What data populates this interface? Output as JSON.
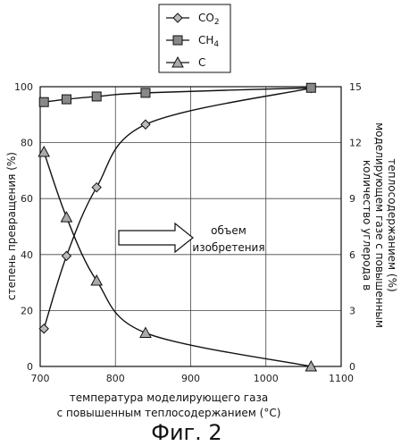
{
  "chart_data": {
    "type": "line",
    "title": "",
    "figure_caption": "Фиг. 2",
    "xlabel_line1": "температура моделирующего газа",
    "xlabel_line2": "с повышенным теплосодержанием (°C)",
    "ylabel_left": "степень превращения (%)",
    "ylabel_right_line1": "количество углерода в",
    "ylabel_right_line2": "моделирующем газе с повышенным",
    "ylabel_right_line3": "теплосодержанием (%)",
    "xlim": [
      700,
      1100
    ],
    "ylim_left": [
      0,
      100
    ],
    "ylim_right": [
      0,
      15
    ],
    "x_ticks": [
      700,
      800,
      900,
      1000,
      1100
    ],
    "y_ticks_left": [
      0,
      20,
      40,
      60,
      80,
      100
    ],
    "y_ticks_right": [
      0,
      3,
      6,
      9,
      12,
      15
    ],
    "grid": true,
    "legend_position": "top-center",
    "annotation": {
      "line1": "объем",
      "line2": "изобретения"
    },
    "series": [
      {
        "name": "CO2",
        "axis": "left",
        "marker": "diamond",
        "x": [
          705,
          735,
          775,
          840,
          1060
        ],
        "y": [
          13.5,
          39.5,
          64,
          86.5,
          99.5
        ]
      },
      {
        "name": "CH4",
        "axis": "left",
        "marker": "square",
        "x": [
          705,
          735,
          775,
          840,
          1060
        ],
        "y": [
          94.5,
          95.5,
          96.5,
          97.8,
          99.6
        ]
      },
      {
        "name": "C",
        "axis": "right",
        "marker": "triangle",
        "x": [
          705,
          735,
          775,
          840,
          1060
        ],
        "y": [
          11.5,
          8.0,
          4.6,
          1.8,
          0.0
        ]
      }
    ]
  }
}
